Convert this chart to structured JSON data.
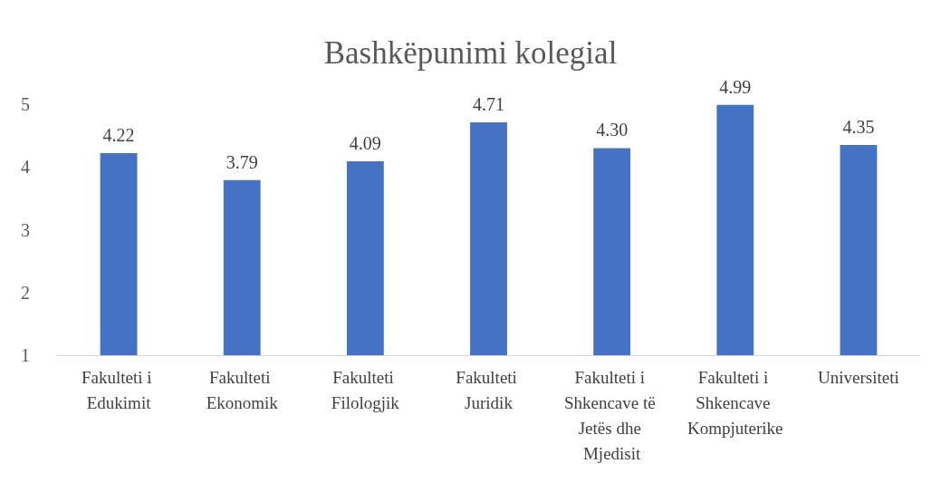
{
  "chart_data": {
    "type": "bar",
    "title": "Bashkëpunimi kolegial",
    "categories": [
      "Fakulteti i Edukimit",
      "Fakulteti Ekonomik",
      "Fakulteti Filologjik",
      "Fakulteti Juridik",
      "Fakulteti i Shkencave të Jetës dhe Mjedisit",
      "Fakulteti i Shkencave Kompjuterike",
      "Universiteti"
    ],
    "values": [
      4.22,
      3.79,
      4.09,
      4.71,
      4.3,
      4.99,
      4.35
    ],
    "value_labels": [
      "4.22",
      "3.79",
      "4.09",
      "4.71",
      "4.30",
      "4.99",
      "4.35"
    ],
    "color": "#4472c4",
    "ylim": [
      1,
      5
    ],
    "yticks": [
      1,
      2,
      3,
      4,
      5
    ],
    "grid": false
  }
}
